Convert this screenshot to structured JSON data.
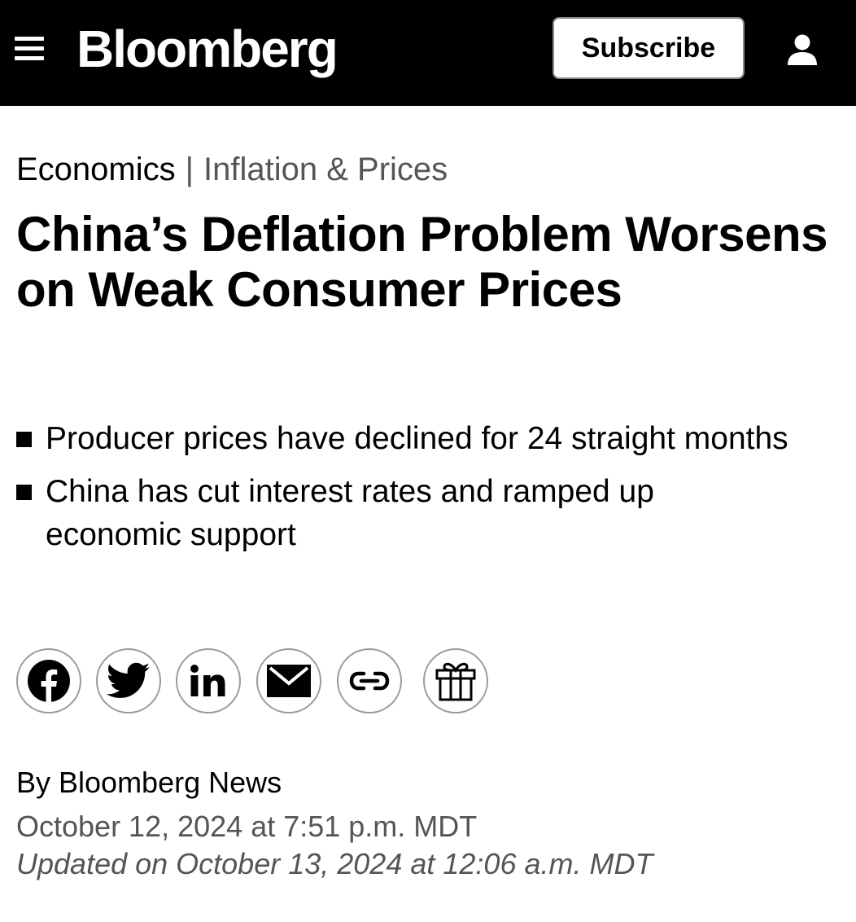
{
  "header": {
    "logo": "Bloomberg",
    "subscribe_label": "Subscribe",
    "menu_icon": "hamburger-menu-icon",
    "account_icon": "user-account-icon",
    "background_color": "#000000"
  },
  "breadcrumb": {
    "section": "Economics",
    "separator": "|",
    "subsection": "Inflation & Prices"
  },
  "article": {
    "headline": "China’s Deflation Problem Worsens on Weak Consumer Prices",
    "bullets": [
      {
        "text": "Producer prices have declined for 24 straight months"
      },
      {
        "text": "China has cut interest rates and ramped up economic support"
      }
    ],
    "byline": "By Bloomberg News",
    "published": "October 12, 2024 at 7:51 p.m. MDT",
    "updated": "Updated on October 13, 2024 at 12:06 a.m. MDT"
  },
  "share": {
    "buttons": [
      {
        "name": "facebook-icon"
      },
      {
        "name": "twitter-icon"
      },
      {
        "name": "linkedin-icon"
      },
      {
        "name": "email-icon"
      },
      {
        "name": "copy-link-icon"
      },
      {
        "name": "gift-icon"
      }
    ]
  }
}
